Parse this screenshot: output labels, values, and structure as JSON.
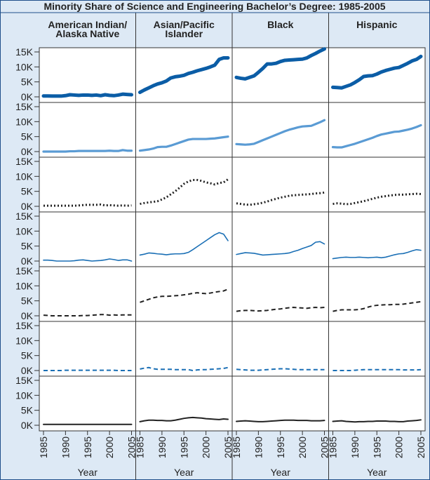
{
  "chart_data": {
    "type": "line",
    "title": "Minority Share of Science and Engineering Bachelor’s Degree: 1985-2005",
    "columns": [
      "American Indian/\nAlaska Native",
      "Asian/Pacific\nIslander",
      "Black",
      "Hispanic"
    ],
    "x": [
      1985,
      1986,
      1987,
      1988,
      1989,
      1990,
      1991,
      1992,
      1993,
      1994,
      1995,
      1996,
      1997,
      1998,
      1999,
      2000,
      2001,
      2002,
      2003,
      2004,
      2005
    ],
    "xlim": [
      1985,
      2005
    ],
    "xticks": [
      1985,
      1990,
      1995,
      2000,
      2005
    ],
    "xlabel": "Year",
    "ylim": [
      0,
      15000
    ],
    "yticks": [
      {
        "value": 0,
        "label": "0K"
      },
      {
        "value": 5000,
        "label": "5K"
      },
      {
        "value": 10000,
        "label": "10K"
      },
      {
        "value": 15000,
        "label": "15K"
      }
    ],
    "rows": [
      {
        "color": "#0b5da6",
        "dash": "solid",
        "width": 5,
        "series": [
          {
            "values": [
              300,
              300,
              250,
              250,
              250,
              400,
              700,
              600,
              500,
              600,
              600,
              500,
              600,
              400,
              700,
              500,
              400,
              600,
              900,
              800,
              700
            ]
          },
          {
            "values": [
              1500,
              2300,
              3000,
              3700,
              4300,
              4700,
              5300,
              6300,
              6700,
              6900,
              7200,
              7800,
              8200,
              8700,
              9100,
              9500,
              10000,
              10600,
              12500,
              13000,
              13000
            ]
          },
          {
            "values": [
              6500,
              6200,
              6000,
              6500,
              7000,
              8200,
              9500,
              11000,
              11000,
              11200,
              11800,
              12200,
              12300,
              12400,
              12500,
              12600,
              13000,
              13800,
              14500,
              15300,
              16000
            ]
          },
          {
            "values": [
              3200,
              3100,
              3000,
              3500,
              4000,
              4800,
              5700,
              6800,
              7000,
              7100,
              7600,
              8300,
              8800,
              9200,
              9600,
              9800,
              10500,
              11200,
              12000,
              12500,
              13500
            ]
          }
        ]
      },
      {
        "color": "#5a9bd4",
        "dash": "solid",
        "width": 3.2,
        "series": [
          {
            "values": [
              0,
              0,
              0,
              0,
              0,
              0,
              100,
              100,
              200,
              200,
              200,
              200,
              200,
              200,
              200,
              300,
              200,
              200,
              500,
              300,
              300
            ]
          },
          {
            "values": [
              300,
              500,
              700,
              1000,
              1500,
              1600,
              1600,
              2000,
              2500,
              3000,
              3500,
              4000,
              4200,
              4200,
              4200,
              4200,
              4300,
              4400,
              4600,
              4800,
              5000
            ]
          },
          {
            "values": [
              2500,
              2400,
              2300,
              2400,
              2600,
              3200,
              3800,
              4400,
              5000,
              5600,
              6200,
              6800,
              7300,
              7700,
              8100,
              8400,
              8500,
              8600,
              9200,
              9800,
              10500
            ]
          },
          {
            "values": [
              1500,
              1400,
              1400,
              1800,
              2200,
              2600,
              3100,
              3600,
              4100,
              4600,
              5200,
              5700,
              6000,
              6300,
              6600,
              6700,
              7000,
              7300,
              7700,
              8200,
              8800
            ]
          }
        ]
      },
      {
        "color": "#222222",
        "dash": "dotted",
        "width": 3,
        "series": [
          {
            "values": [
              200,
              200,
              200,
              200,
              200,
              200,
              200,
              200,
              300,
              400,
              500,
              500,
              500,
              600,
              300,
              400,
              300,
              200,
              300,
              200,
              300
            ]
          },
          {
            "values": [
              800,
              1100,
              1300,
              1500,
              1700,
              2300,
              3000,
              4000,
              5000,
              6200,
              7500,
              8300,
              8800,
              8800,
              8500,
              8000,
              7700,
              7300,
              7800,
              8000,
              9000
            ]
          },
          {
            "values": [
              1000,
              800,
              600,
              500,
              700,
              900,
              1200,
              1600,
              2100,
              2500,
              2900,
              3200,
              3500,
              3700,
              3800,
              3900,
              4000,
              4100,
              4300,
              4400,
              4600
            ]
          },
          {
            "values": [
              800,
              1000,
              900,
              700,
              800,
              1100,
              1400,
              1700,
              2100,
              2500,
              2900,
              3200,
              3400,
              3600,
              3800,
              3900,
              3900,
              4000,
              4100,
              4200,
              4100
            ]
          }
        ]
      },
      {
        "color": "#1a6fb5",
        "dash": "solid",
        "width": 1.6,
        "series": [
          {
            "values": [
              300,
              300,
              200,
              0,
              0,
              0,
              0,
              100,
              300,
              400,
              200,
              0,
              100,
              200,
              400,
              700,
              500,
              200,
              400,
              400,
              0
            ]
          },
          {
            "values": [
              2000,
              2300,
              2700,
              2600,
              2400,
              2300,
              2100,
              2300,
              2400,
              2400,
              2500,
              2900,
              3800,
              4800,
              5800,
              6800,
              7800,
              8800,
              9500,
              9000,
              6800
            ]
          },
          {
            "values": [
              2200,
              2500,
              2800,
              2700,
              2600,
              2300,
              2000,
              2100,
              2200,
              2300,
              2400,
              2500,
              2700,
              3200,
              3600,
              4200,
              4700,
              5200,
              6300,
              6500,
              5700
            ]
          },
          {
            "values": [
              800,
              1000,
              1200,
              1300,
              1200,
              1200,
              1300,
              1200,
              1100,
              1200,
              1300,
              1100,
              1300,
              1700,
              2100,
              2400,
              2500,
              2900,
              3400,
              3800,
              3600
            ]
          }
        ]
      },
      {
        "color": "#222222",
        "dash": "dashed",
        "width": 2,
        "series": [
          {
            "values": [
              200,
              100,
              0,
              0,
              0,
              0,
              0,
              0,
              0,
              100,
              100,
              200,
              300,
              400,
              400,
              200,
              300,
              200,
              300,
              300,
              300
            ]
          },
          {
            "values": [
              4500,
              5000,
              5500,
              6000,
              6300,
              6500,
              6500,
              6600,
              6700,
              6800,
              7000,
              7200,
              7500,
              7700,
              7500,
              7400,
              7600,
              7900,
              8100,
              8300,
              8900
            ]
          },
          {
            "values": [
              1500,
              1700,
              1800,
              1800,
              1700,
              1600,
              1700,
              1800,
              2000,
              2200,
              2300,
              2500,
              2700,
              2800,
              2700,
              2600,
              2500,
              2700,
              2800,
              2700,
              2800
            ]
          },
          {
            "values": [
              1500,
              1800,
              2000,
              2000,
              2000,
              2000,
              2100,
              2400,
              2900,
              3300,
              3500,
              3600,
              3700,
              3700,
              3800,
              3800,
              3900,
              4100,
              4300,
              4500,
              4700
            ]
          }
        ]
      },
      {
        "color": "#1a6fb5",
        "dash": "dashed",
        "width": 2,
        "series": [
          {
            "values": [
              0,
              0,
              0,
              0,
              0,
              100,
              100,
              100,
              100,
              100,
              100,
              100,
              100,
              100,
              100,
              100,
              100,
              0,
              0,
              0,
              0
            ]
          },
          {
            "values": [
              500,
              800,
              1000,
              600,
              400,
              400,
              400,
              400,
              300,
              300,
              300,
              300,
              0,
              200,
              300,
              300,
              400,
              500,
              600,
              700,
              1000
            ]
          },
          {
            "values": [
              400,
              300,
              200,
              100,
              100,
              100,
              200,
              300,
              400,
              500,
              600,
              600,
              500,
              400,
              300,
              300,
              300,
              300,
              300,
              300,
              300
            ]
          },
          {
            "values": [
              0,
              0,
              0,
              0,
              0,
              100,
              200,
              300,
              300,
              300,
              300,
              300,
              300,
              300,
              300,
              300,
              200,
              200,
              200,
              200,
              300
            ]
          }
        ]
      },
      {
        "color": "#222222",
        "dash": "solid",
        "width": 2,
        "series": [
          {
            "values": [
              300,
              300,
              300,
              300,
              300,
              300,
              300,
              300,
              300,
              300,
              300,
              300,
              300,
              300,
              300,
              300,
              300,
              300,
              300,
              300,
              300
            ]
          },
          {
            "values": [
              1200,
              1500,
              1700,
              1700,
              1600,
              1600,
              1500,
              1500,
              1700,
              2000,
              2300,
              2500,
              2600,
              2500,
              2400,
              2200,
              2100,
              2000,
              1900,
              2100,
              2000
            ]
          },
          {
            "values": [
              1300,
              1400,
              1500,
              1400,
              1300,
              1200,
              1200,
              1300,
              1400,
              1500,
              1600,
              1700,
              1700,
              1700,
              1600,
              1600,
              1600,
              1500,
              1500,
              1500,
              1600
            ]
          },
          {
            "values": [
              1300,
              1400,
              1500,
              1300,
              1200,
              1100,
              1200,
              1200,
              1300,
              1300,
              1400,
              1400,
              1400,
              1300,
              1300,
              1200,
              1200,
              1400,
              1500,
              1600,
              1800
            ]
          }
        ]
      }
    ]
  }
}
